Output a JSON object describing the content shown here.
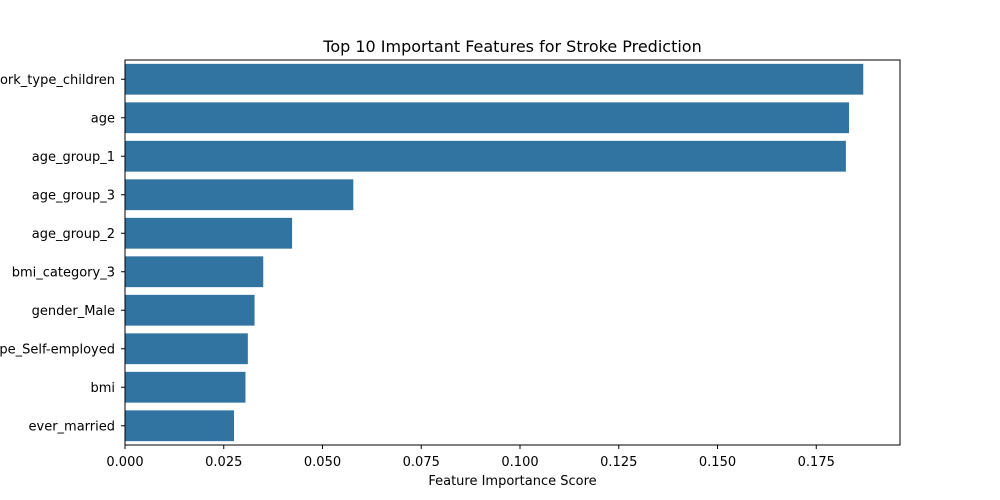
{
  "chart_data": {
    "type": "bar",
    "orientation": "horizontal",
    "title": "Top 10 Important Features for Stroke Prediction",
    "xlabel": "Feature Importance Score",
    "ylabel": "",
    "categories": [
      "work_type_children",
      "age",
      "age_group_1",
      "age_group_3",
      "age_group_2",
      "bmi_category_3",
      "gender_Male",
      "work_type_Self-employed",
      "bmi",
      "ever_married"
    ],
    "values": [
      0.1869,
      0.1833,
      0.1825,
      0.0578,
      0.0423,
      0.035,
      0.0328,
      0.0311,
      0.0305,
      0.0276
    ],
    "xlim": [
      0,
      0.1962
    ],
    "xticks": [
      0.0,
      0.025,
      0.05,
      0.075,
      0.1,
      0.125,
      0.15,
      0.175
    ],
    "xtick_labels": [
      "0.000",
      "0.025",
      "0.050",
      "0.075",
      "0.100",
      "0.125",
      "0.150",
      "0.175"
    ],
    "bar_color": "#3274a1",
    "grid": false,
    "legend": "none"
  }
}
